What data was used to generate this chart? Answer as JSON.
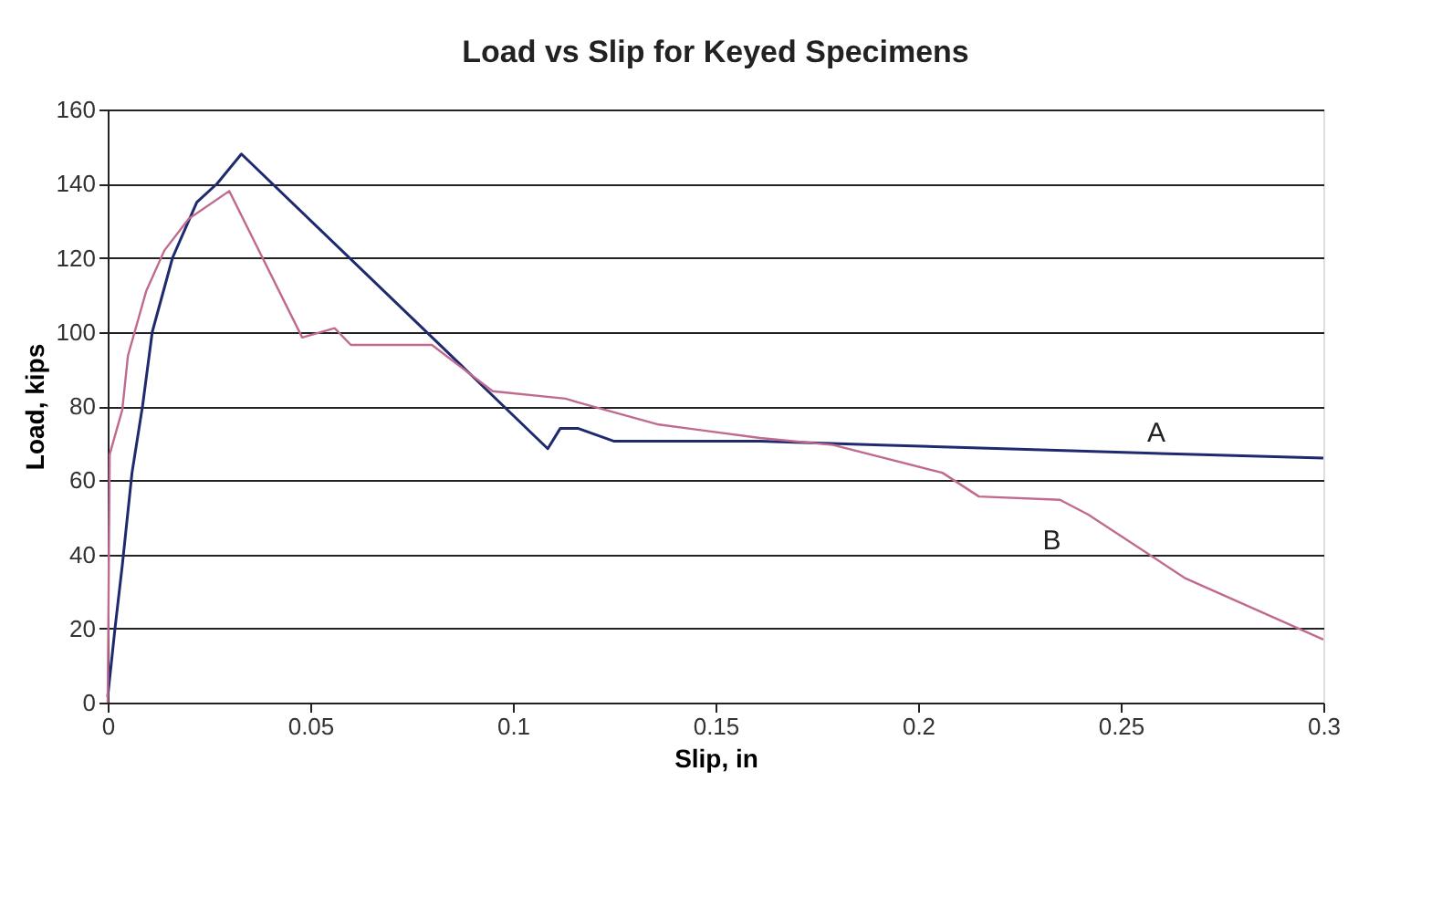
{
  "chart_data": {
    "type": "line",
    "title": "Load vs Slip for Keyed Specimens",
    "xlabel": "Slip, in",
    "ylabel": "Load, kips",
    "xlim": [
      0,
      0.3
    ],
    "xticks": [
      0,
      0.05,
      0.1,
      0.15,
      0.2,
      0.25,
      0.3
    ],
    "ylim": [
      0,
      160
    ],
    "yticks": [
      0,
      20,
      40,
      60,
      80,
      100,
      120,
      140,
      160
    ],
    "grid": "y",
    "legend": false,
    "marker": "none",
    "line_style": "solid",
    "series": [
      {
        "name": "A",
        "color": "#1f2a6e",
        "x": [
          0,
          0.0018,
          0.0036,
          0.006,
          0.0086,
          0.011,
          0.016,
          0.022,
          0.027,
          0.033,
          0.1086,
          0.1117,
          0.116,
          0.125,
          0.161,
          0.191,
          0.236,
          0.266,
          0.3
        ],
        "values": [
          1.5,
          20,
          37,
          62,
          80,
          100,
          120,
          135,
          140,
          148,
          68.5,
          74,
          74,
          70.5,
          70.5,
          69.5,
          68,
          67,
          66
        ]
      },
      {
        "name": "B",
        "color": "#c06a8f",
        "x": [
          0,
          0.0005,
          0.0036,
          0.005,
          0.0095,
          0.014,
          0.02,
          0.03,
          0.048,
          0.056,
          0.06,
          0.08,
          0.095,
          0.113,
          0.116,
          0.136,
          0.161,
          0.179,
          0.206,
          0.215,
          0.235,
          0.242,
          0.266,
          0.3
        ],
        "values": [
          0,
          67,
          79,
          93.6,
          111,
          122,
          130.5,
          138,
          98.5,
          101,
          96.5,
          96.5,
          84,
          82,
          81,
          75,
          71.4,
          69.5,
          62,
          55.6,
          54.7,
          50.7,
          33.5,
          17
        ]
      }
    ]
  }
}
